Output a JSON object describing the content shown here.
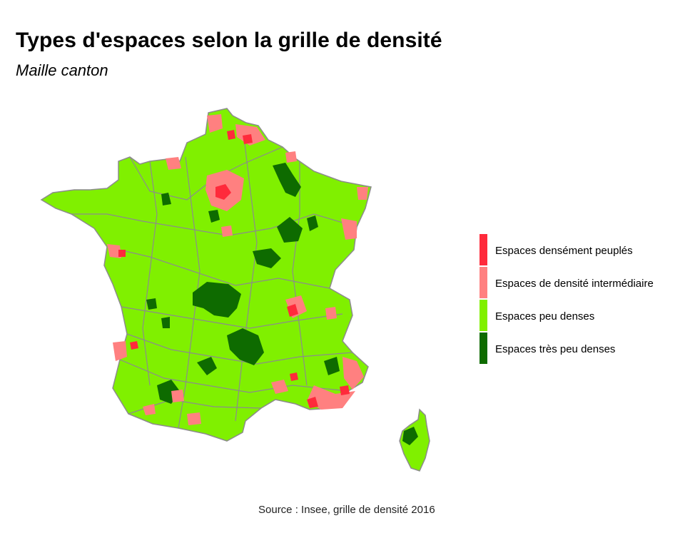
{
  "title": "Types d'espaces selon la grille de densité",
  "subtitle": "Maille canton",
  "caption": "Source : Insee, grille de densité 2016",
  "legend": [
    {
      "label": "Espaces densément peuplés",
      "color": "#ff2a3b"
    },
    {
      "label": "Espaces de densité intermédiaire",
      "color": "#ff8080"
    },
    {
      "label": "Espaces peu denses",
      "color": "#80f000"
    },
    {
      "label": "Espaces très peu denses",
      "color": "#0e6b00"
    }
  ],
  "colors": {
    "border": "#8c8c8c",
    "background": "#ffffff"
  }
}
